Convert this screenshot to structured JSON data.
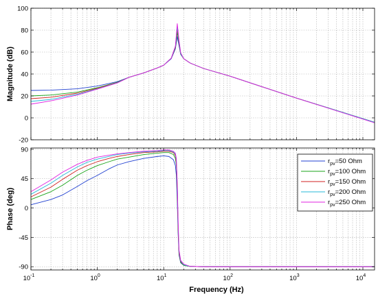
{
  "chart_data": [
    {
      "type": "line",
      "panel": "magnitude",
      "xscale": "log",
      "xlim": [
        0.1,
        15000
      ],
      "ylim": [
        -20,
        100
      ],
      "ylabel": "Magnitude (dB)",
      "xlabel": "",
      "grid": true,
      "yticks": [
        "-20",
        "0",
        "20",
        "40",
        "60",
        "80",
        "100"
      ],
      "series": [
        {
          "color": "#1f3fd0",
          "x": [
            0.1,
            0.2,
            0.5,
            1,
            2,
            3,
            5,
            8,
            10,
            13,
            15,
            16,
            17,
            18,
            20,
            25,
            40,
            100,
            1000,
            15000
          ],
          "y": [
            25,
            25.3,
            26.5,
            29,
            33,
            37,
            41,
            45.5,
            48,
            54,
            63,
            74,
            66,
            58,
            54,
            50,
            45,
            38,
            18,
            -4
          ]
        },
        {
          "color": "#17a317",
          "x": [
            0.1,
            0.2,
            0.5,
            1,
            2,
            3,
            5,
            8,
            10,
            13,
            15,
            16,
            17,
            18,
            20,
            25,
            40,
            100,
            1000,
            15000
          ],
          "y": [
            20,
            20.8,
            23.5,
            27.5,
            32.5,
            37,
            41,
            45.5,
            48,
            54.5,
            64,
            78,
            68,
            58.5,
            54,
            50,
            45,
            38,
            18,
            -4
          ]
        },
        {
          "color": "#d02020",
          "x": [
            0.1,
            0.2,
            0.5,
            1,
            2,
            3,
            5,
            8,
            10,
            13,
            15,
            16,
            17,
            18,
            20,
            25,
            40,
            100,
            1000,
            15000
          ],
          "y": [
            17.5,
            18.8,
            22.5,
            27,
            32.2,
            37,
            41,
            45.5,
            48,
            54.5,
            64.5,
            81,
            69,
            59,
            54,
            50,
            45,
            38,
            18,
            -4
          ]
        },
        {
          "color": "#25b8d8",
          "x": [
            0.1,
            0.2,
            0.5,
            1,
            2,
            3,
            5,
            8,
            10,
            13,
            15,
            16,
            17,
            18,
            20,
            25,
            40,
            100,
            1000,
            15000
          ],
          "y": [
            15,
            16.8,
            21.5,
            26.5,
            32,
            37,
            41,
            45.5,
            48,
            54.5,
            65,
            83,
            70,
            59,
            54,
            50,
            45,
            38,
            18,
            -4
          ]
        },
        {
          "color": "#e020e0",
          "x": [
            0.1,
            0.2,
            0.5,
            1,
            2,
            3,
            5,
            8,
            10,
            13,
            15,
            16,
            17,
            18,
            20,
            25,
            40,
            100,
            1000,
            15000
          ],
          "y": [
            12.5,
            15.5,
            20.8,
            26.2,
            31.8,
            37,
            41,
            45.5,
            48,
            54.5,
            65.5,
            86,
            71,
            59.5,
            54,
            50,
            45,
            38,
            18,
            -4.5
          ]
        }
      ]
    },
    {
      "type": "line",
      "panel": "phase",
      "xscale": "log",
      "xlim": [
        0.1,
        15000
      ],
      "ylim": [
        -95,
        92
      ],
      "ylabel": "Phase (deg)",
      "xlabel": "Frequency  (Hz)",
      "grid": true,
      "yticks": [
        "-90",
        "-45",
        "0",
        "45",
        "90"
      ],
      "xticks": [
        {
          "base": "10",
          "exp": "-1"
        },
        {
          "base": "10",
          "exp": "0"
        },
        {
          "base": "10",
          "exp": "1"
        },
        {
          "base": "10",
          "exp": "2"
        },
        {
          "base": "10",
          "exp": "3"
        },
        {
          "base": "10",
          "exp": "4"
        }
      ],
      "legend": {
        "position": "right",
        "entries": [
          {
            "main": "r",
            "sub": "pv",
            "rest": "=50 Ohm"
          },
          {
            "main": "r",
            "sub": "pv",
            "rest": "=100 Ohm"
          },
          {
            "main": "r",
            "sub": "pv",
            "rest": "=150 Ohm"
          },
          {
            "main": "r",
            "sub": "pv",
            "rest": "=200 Ohm"
          },
          {
            "main": "r",
            "sub": "pv",
            "rest": "=250 Ohm"
          }
        ]
      },
      "series": [
        {
          "color": "#1f3fd0",
          "x": [
            0.1,
            0.2,
            0.3,
            0.5,
            0.7,
            1,
            1.5,
            2,
            3,
            5,
            8,
            10,
            12,
            14,
            15,
            15.5,
            16,
            16.5,
            17,
            18,
            20,
            25,
            40,
            15000
          ],
          "y": [
            5,
            13,
            20,
            33,
            42,
            50,
            60,
            66,
            71,
            76,
            79,
            80,
            79,
            74,
            65,
            50,
            10,
            -40,
            -72,
            -84,
            -88,
            -89.5,
            -90,
            -90
          ]
        },
        {
          "color": "#17a317",
          "x": [
            0.1,
            0.2,
            0.3,
            0.5,
            0.7,
            1,
            1.5,
            2,
            3,
            5,
            8,
            10,
            12,
            14,
            15,
            15.5,
            16,
            16.5,
            17,
            18,
            20,
            25,
            40,
            15000
          ],
          "y": [
            13,
            25,
            35,
            50,
            58,
            65,
            71,
            75,
            78,
            82,
            84,
            85,
            85,
            82,
            76,
            65,
            25,
            -35,
            -70,
            -83,
            -88,
            -89.5,
            -90,
            -90
          ]
        },
        {
          "color": "#d02020",
          "x": [
            0.1,
            0.2,
            0.3,
            0.5,
            0.7,
            1,
            1.5,
            2,
            3,
            5,
            8,
            10,
            12,
            14,
            15,
            15.5,
            16,
            16.5,
            17,
            18,
            20,
            25,
            40,
            15000
          ],
          "y": [
            17,
            32,
            44,
            58,
            65,
            71,
            76,
            79,
            82,
            85,
            86,
            87,
            87,
            85,
            80,
            70,
            30,
            -30,
            -68,
            -82,
            -87,
            -89.5,
            -90,
            -90
          ]
        },
        {
          "color": "#25b8d8",
          "x": [
            0.1,
            0.2,
            0.3,
            0.5,
            0.7,
            1,
            1.5,
            2,
            3,
            5,
            8,
            10,
            12,
            14,
            15,
            15.5,
            16,
            16.5,
            17,
            18,
            20,
            25,
            40,
            15000
          ],
          "y": [
            21,
            38,
            50,
            63,
            70,
            75,
            79,
            82,
            84,
            86,
            87,
            88,
            88,
            86,
            82,
            73,
            35,
            -25,
            -66,
            -81,
            -87,
            -89.5,
            -90,
            -90
          ]
        },
        {
          "color": "#e020e0",
          "x": [
            0.1,
            0.2,
            0.3,
            0.5,
            0.7,
            1,
            1.5,
            2,
            3,
            5,
            8,
            10,
            12,
            14,
            15,
            15.5,
            16,
            16.5,
            17,
            18,
            20,
            25,
            40,
            15000
          ],
          "y": [
            25,
            43,
            55,
            67,
            73,
            78,
            81,
            83,
            85,
            87,
            88,
            89,
            89,
            87,
            84,
            76,
            40,
            -20,
            -64,
            -80,
            -86,
            -89.5,
            -90,
            -90
          ]
        }
      ]
    }
  ]
}
